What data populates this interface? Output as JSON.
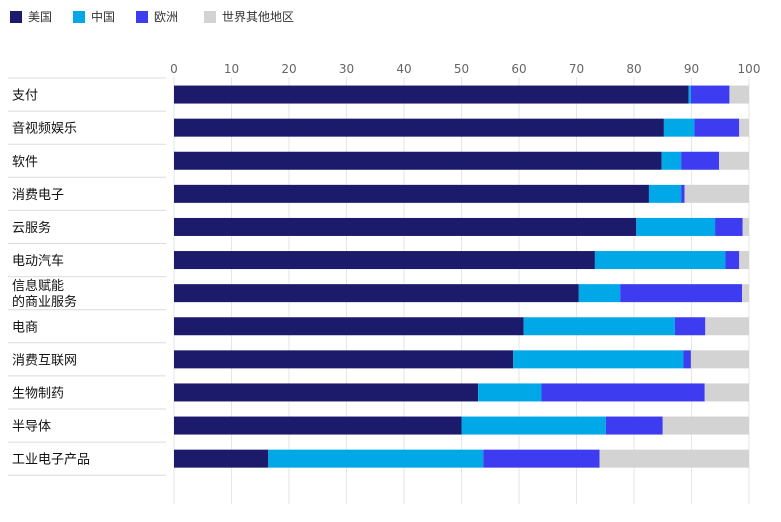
{
  "chart_data": {
    "type": "bar",
    "orientation": "horizontal",
    "stacked": true,
    "title": "",
    "xlabel": "",
    "ylabel": "",
    "xlim": [
      0,
      100
    ],
    "ticks": [
      "0",
      "10",
      "20",
      "30",
      "40",
      "50",
      "60",
      "70",
      "80",
      "90",
      "100"
    ],
    "grid": true,
    "legend_position": "top-left",
    "categories": [
      "支付",
      "音视频娱乐",
      "软件",
      "消费电子",
      "云服务",
      "电动汽车",
      "信息赋能\n的商业服务",
      "电商",
      "消费互联网",
      "生物制药",
      "半导体",
      "工业电子产品"
    ],
    "series": [
      {
        "name": "美国",
        "color": "#1b1a6b",
        "values": [
          89.5,
          85.2,
          84.8,
          82.6,
          80.4,
          73.2,
          70.4,
          60.8,
          59.0,
          52.9,
          50.0,
          16.4
        ]
      },
      {
        "name": "中国",
        "color": "#00a8e8",
        "values": [
          0.4,
          5.3,
          3.4,
          5.6,
          13.7,
          22.7,
          7.2,
          26.3,
          29.6,
          11.0,
          25.1,
          37.4
        ]
      },
      {
        "name": "欧洲",
        "color": "#3d3cf0",
        "values": [
          6.7,
          7.8,
          6.6,
          0.6,
          4.8,
          2.4,
          21.2,
          5.3,
          1.3,
          28.4,
          9.9,
          20.2
        ]
      },
      {
        "name": "世界其他地区",
        "color": "#d3d3d3",
        "values": [
          3.4,
          1.7,
          5.2,
          11.2,
          1.1,
          1.7,
          1.2,
          7.6,
          10.1,
          7.7,
          15.0,
          26.0
        ]
      }
    ]
  }
}
